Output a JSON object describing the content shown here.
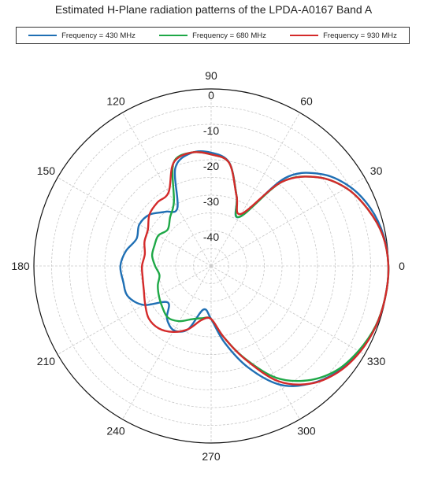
{
  "chart_data": {
    "type": "polar-line",
    "title": "Estimated H-Plane radiation patterns of the LPDA-A0167 Band A",
    "angular_ticks": [
      "0",
      "30",
      "60",
      "90",
      "120",
      "150",
      "180",
      "210",
      "240",
      "270",
      "300",
      "330"
    ],
    "radial_ticks": [
      "0",
      "-10",
      "-20",
      "-30",
      "-40"
    ],
    "radial_range_db": [
      -50,
      0
    ],
    "grid": true,
    "legend_position": "top",
    "angle_units": "degrees",
    "value_units": "dB",
    "series": [
      {
        "name": "Frequency = 430 MHz",
        "color": "#1f6fb4",
        "theta": [
          0,
          10,
          20,
          30,
          40,
          50,
          60,
          70,
          80,
          90,
          100,
          110,
          120,
          130,
          140,
          150,
          160,
          170,
          180,
          190,
          200,
          210,
          220,
          230,
          240,
          250,
          260,
          270,
          280,
          290,
          300,
          310,
          320,
          330,
          340,
          350
        ],
        "r_db": [
          0,
          -0.6,
          -2.2,
          -5,
          -9.6,
          -17.6,
          -34,
          -29,
          -20.4,
          -18,
          -17.6,
          -20.5,
          -31,
          -30,
          -27.4,
          -26.6,
          -27.6,
          -25.6,
          -24.4,
          -24.8,
          -25,
          -28,
          -34,
          -30.6,
          -29,
          -31,
          -37.5,
          -35,
          -28,
          -19.5,
          -11.3,
          -6.6,
          -3.5,
          -1.6,
          -0.5,
          -0.1
        ]
      },
      {
        "name": "Frequency = 680 MHz",
        "color": "#1ea847",
        "theta": [
          0,
          10,
          20,
          30,
          40,
          50,
          60,
          70,
          80,
          90,
          100,
          110,
          120,
          130,
          140,
          150,
          160,
          170,
          180,
          190,
          200,
          210,
          220,
          230,
          240,
          250,
          260,
          270,
          280,
          290,
          300,
          310,
          320,
          330,
          340,
          350
        ],
        "r_db": [
          0,
          -0.8,
          -3,
          -6,
          -11,
          -19,
          -34,
          -29,
          -20.5,
          -18.5,
          -17.5,
          -19,
          -29,
          -32,
          -34,
          -32.8,
          -33,
          -33.1,
          -34.2,
          -35.2,
          -34,
          -33,
          -32,
          -31,
          -32,
          -34,
          -35,
          -35,
          -29.6,
          -22.2,
          -13.6,
          -7.8,
          -4,
          -2,
          -0.6,
          -0.1
        ]
      },
      {
        "name": "Frequency = 930 MHz",
        "color": "#d42a2a",
        "theta": [
          0,
          10,
          20,
          30,
          40,
          50,
          60,
          70,
          80,
          90,
          100,
          110,
          120,
          130,
          140,
          150,
          160,
          170,
          180,
          190,
          200,
          210,
          220,
          230,
          240,
          250,
          260,
          270,
          280,
          290,
          300,
          310,
          320,
          330,
          340,
          350
        ],
        "r_db": [
          0,
          -0.8,
          -3,
          -6,
          -11,
          -19,
          -33,
          -29,
          -20.5,
          -18.5,
          -17.5,
          -19,
          -26,
          -26.5,
          -27.3,
          -29.4,
          -30,
          -31,
          -30.5,
          -30.4,
          -29.8,
          -28.5,
          -27,
          -27,
          -28.5,
          -31,
          -34.5,
          -35,
          -29.6,
          -22,
          -12.5,
          -6.6,
          -3.3,
          -1.5,
          -0.5,
          -0.1
        ]
      }
    ]
  }
}
